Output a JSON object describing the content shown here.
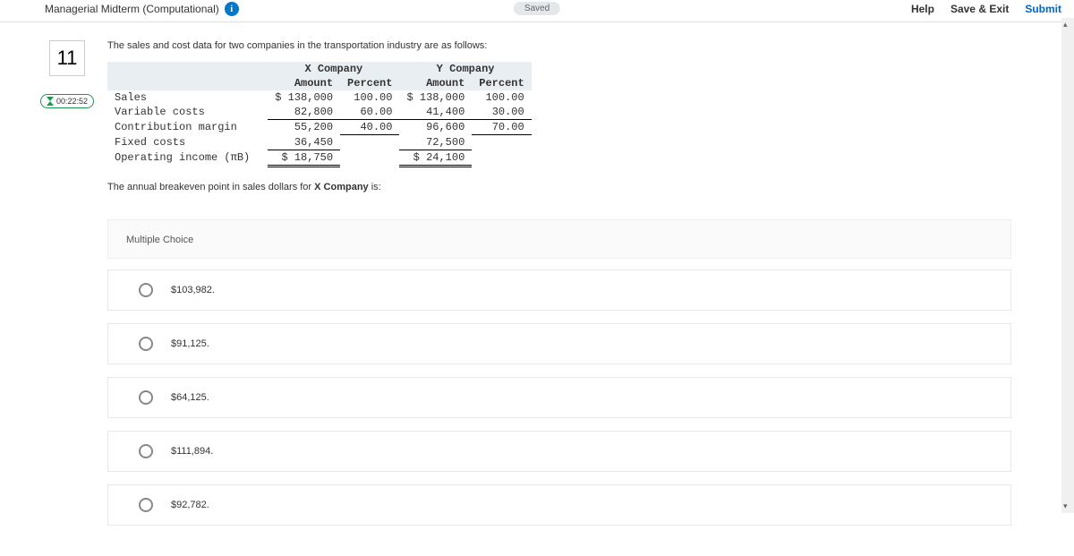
{
  "header": {
    "title": "Managerial Midterm (Computational)",
    "info_glyph": "i",
    "saved_label": "Saved",
    "links": {
      "help": "Help",
      "save_exit": "Save & Exit",
      "submit": "Submit"
    }
  },
  "question": {
    "number": "11",
    "timer": "00:22:52",
    "prompt": "The sales and cost data for two companies in the transportation industry are as follows:",
    "sub_prompt_pre": "The annual breakeven point in sales dollars for ",
    "sub_prompt_bold": "X Company",
    "sub_prompt_post": " is:"
  },
  "table": {
    "x_header": "X Company",
    "y_header": "Y Company",
    "amount_label": "Amount",
    "percent_label": "Percent",
    "rows": {
      "sales": {
        "label": "Sales",
        "x_amt": "$ 138,000",
        "x_pct": "100.00",
        "y_amt": "$ 138,000",
        "y_pct": "100.00"
      },
      "varcost": {
        "label": "Variable costs",
        "x_amt": "82,800",
        "x_pct": "60.00",
        "y_amt": "41,400",
        "y_pct": "30.00"
      },
      "contrib": {
        "label": "Contribution margin",
        "x_amt": "55,200",
        "x_pct": "40.00",
        "y_amt": "96,600",
        "y_pct": "70.00"
      },
      "fixed": {
        "label": "Fixed costs",
        "x_amt": "36,450",
        "x_pct": "",
        "y_amt": "72,500",
        "y_pct": ""
      },
      "opinc": {
        "label": "Operating income (πB)",
        "x_amt": "$ 18,750",
        "x_pct": "",
        "y_amt": "$ 24,100",
        "y_pct": ""
      }
    }
  },
  "mc": {
    "heading": "Multiple Choice",
    "options": [
      "$103,982.",
      "$91,125.",
      "$64,125.",
      "$111,894.",
      "$92,782."
    ]
  },
  "colors": {
    "info_bg": "#0077c8",
    "timer_border": "#1a9850",
    "submit_link": "#0066cc",
    "hdr_bg": "#e8eef2"
  }
}
